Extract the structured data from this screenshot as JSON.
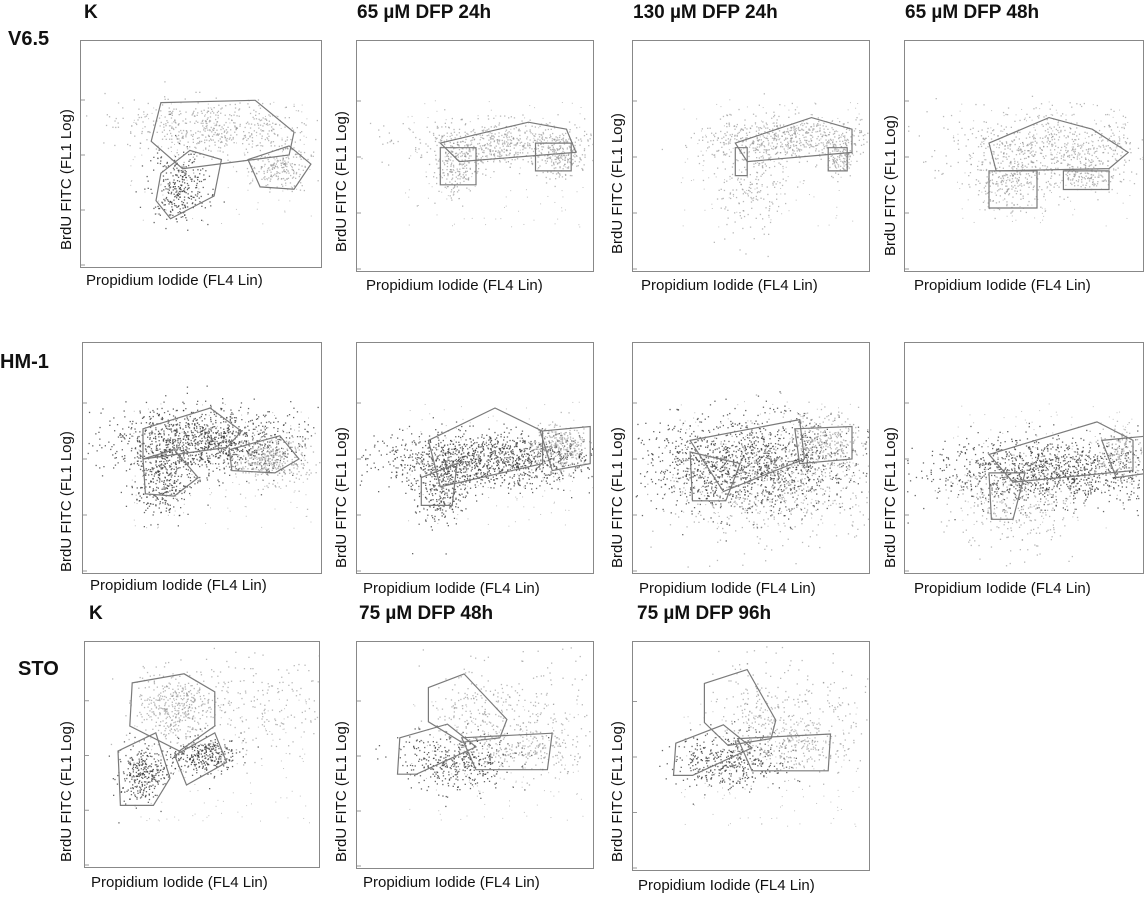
{
  "columns": {
    "r1c1": "K",
    "r1c2": "65 µM DFP 24h",
    "r1c3": "130 µM DFP 24h",
    "r1c4": "65 µM DFP 48h",
    "r3c1": "K",
    "r3c2": "75 µM DFP 48h",
    "r3c3": "75 µM DFP 96h"
  },
  "rows": {
    "r1": "V6.5",
    "r2": "HM-1",
    "r3": "STO"
  },
  "axes": {
    "ylabel": "BrdU FITC (FL1 Log)",
    "xlabel": "Propidium Iodide (FL4 Lin)"
  },
  "chart_data": {
    "type": "scatter",
    "xlabel": "Propidium Iodide (FL4 Lin)",
    "ylabel": "BrdU FITC (FL1 Log)",
    "panels": [
      {
        "row": "V6.5",
        "condition": "K"
      },
      {
        "row": "V6.5",
        "condition": "65 µM DFP 24h"
      },
      {
        "row": "V6.5",
        "condition": "130 µM DFP 24h"
      },
      {
        "row": "V6.5",
        "condition": "65 µM DFP 48h"
      },
      {
        "row": "HM-1",
        "condition": ""
      },
      {
        "row": "HM-1",
        "condition": ""
      },
      {
        "row": "HM-1",
        "condition": ""
      },
      {
        "row": "HM-1",
        "condition": ""
      },
      {
        "row": "STO",
        "condition": "K"
      },
      {
        "row": "STO",
        "condition": "75 µM DFP 48h"
      },
      {
        "row": "STO",
        "condition": "75 µM DFP 96h"
      }
    ]
  },
  "colors": {
    "dots_light": "#8a8a8a",
    "dots_dark": "#333333",
    "gate": "#7a7a7a"
  }
}
